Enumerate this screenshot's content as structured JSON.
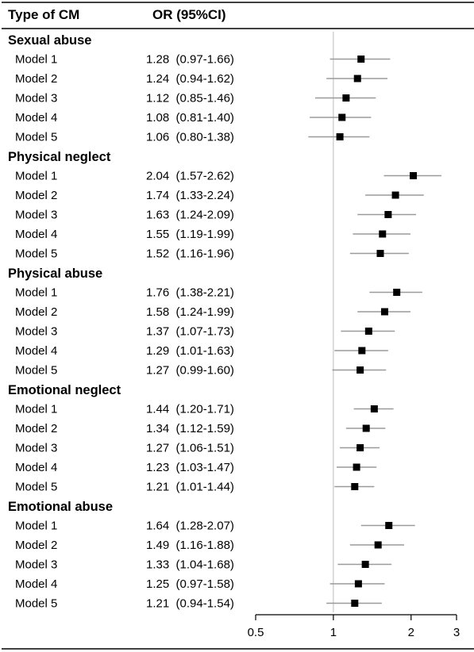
{
  "chart_data": {
    "type": "forest",
    "x_scale": "log",
    "x_ticks": [
      0.5,
      1,
      2,
      3
    ],
    "x_tick_labels": [
      "0.5",
      "1",
      "2",
      "3"
    ],
    "reference_line": 1,
    "header": {
      "col1": "Type of CM",
      "col2": "OR (95%CI)"
    },
    "groups": [
      {
        "name": "Sexual abuse",
        "rows": [
          {
            "label": "Model 1",
            "or": 1.28,
            "lo": 0.97,
            "hi": 1.66,
            "ci_text": "1.28  (0.97-1.66)"
          },
          {
            "label": "Model 2",
            "or": 1.24,
            "lo": 0.94,
            "hi": 1.62,
            "ci_text": "1.24  (0.94-1.62)"
          },
          {
            "label": "Model 3",
            "or": 1.12,
            "lo": 0.85,
            "hi": 1.46,
            "ci_text": "1.12  (0.85-1.46)"
          },
          {
            "label": "Model 4",
            "or": 1.08,
            "lo": 0.81,
            "hi": 1.4,
            "ci_text": "1.08  (0.81-1.40)"
          },
          {
            "label": "Model 5",
            "or": 1.06,
            "lo": 0.8,
            "hi": 1.38,
            "ci_text": "1.06  (0.80-1.38)"
          }
        ]
      },
      {
        "name": "Physical neglect",
        "rows": [
          {
            "label": "Model 1",
            "or": 2.04,
            "lo": 1.57,
            "hi": 2.62,
            "ci_text": "2.04  (1.57-2.62)"
          },
          {
            "label": "Model 2",
            "or": 1.74,
            "lo": 1.33,
            "hi": 2.24,
            "ci_text": "1.74  (1.33-2.24)"
          },
          {
            "label": "Model 3",
            "or": 1.63,
            "lo": 1.24,
            "hi": 2.09,
            "ci_text": "1.63  (1.24-2.09)"
          },
          {
            "label": "Model 4",
            "or": 1.55,
            "lo": 1.19,
            "hi": 1.99,
            "ci_text": "1.55  (1.19-1.99)"
          },
          {
            "label": "Model 5",
            "or": 1.52,
            "lo": 1.16,
            "hi": 1.96,
            "ci_text": "1.52  (1.16-1.96)"
          }
        ]
      },
      {
        "name": "Physical abuse",
        "rows": [
          {
            "label": "Model 1",
            "or": 1.76,
            "lo": 1.38,
            "hi": 2.21,
            "ci_text": "1.76  (1.38-2.21)"
          },
          {
            "label": "Model 2",
            "or": 1.58,
            "lo": 1.24,
            "hi": 1.99,
            "ci_text": "1.58  (1.24-1.99)"
          },
          {
            "label": "Model 3",
            "or": 1.37,
            "lo": 1.07,
            "hi": 1.73,
            "ci_text": "1.37  (1.07-1.73)"
          },
          {
            "label": "Model 4",
            "or": 1.29,
            "lo": 1.01,
            "hi": 1.63,
            "ci_text": "1.29  (1.01-1.63)"
          },
          {
            "label": "Model 5",
            "or": 1.27,
            "lo": 0.99,
            "hi": 1.6,
            "ci_text": "1.27  (0.99-1.60)"
          }
        ]
      },
      {
        "name": "Emotional neglect",
        "rows": [
          {
            "label": "Model 1",
            "or": 1.44,
            "lo": 1.2,
            "hi": 1.71,
            "ci_text": "1.44  (1.20-1.71)"
          },
          {
            "label": "Model 2",
            "or": 1.34,
            "lo": 1.12,
            "hi": 1.59,
            "ci_text": "1.34  (1.12-1.59)"
          },
          {
            "label": "Model 3",
            "or": 1.27,
            "lo": 1.06,
            "hi": 1.51,
            "ci_text": "1.27  (1.06-1.51)"
          },
          {
            "label": "Model 4",
            "or": 1.23,
            "lo": 1.03,
            "hi": 1.47,
            "ci_text": "1.23  (1.03-1.47)"
          },
          {
            "label": "Model 5",
            "or": 1.21,
            "lo": 1.01,
            "hi": 1.44,
            "ci_text": "1.21  (1.01-1.44)"
          }
        ]
      },
      {
        "name": "Emotional abuse",
        "rows": [
          {
            "label": "Model 1",
            "or": 1.64,
            "lo": 1.28,
            "hi": 2.07,
            "ci_text": "1.64  (1.28-2.07)"
          },
          {
            "label": "Model 2",
            "or": 1.49,
            "lo": 1.16,
            "hi": 1.88,
            "ci_text": "1.49  (1.16-1.88)"
          },
          {
            "label": "Model 3",
            "or": 1.33,
            "lo": 1.04,
            "hi": 1.68,
            "ci_text": "1.33  (1.04-1.68)"
          },
          {
            "label": "Model 4",
            "or": 1.25,
            "lo": 0.97,
            "hi": 1.58,
            "ci_text": "1.25  (0.97-1.58)"
          },
          {
            "label": "Model 5",
            "or": 1.21,
            "lo": 0.94,
            "hi": 1.54,
            "ci_text": "1.21  (0.94-1.54)"
          }
        ]
      }
    ],
    "colors": {
      "marker": "#000000",
      "ci_line": "#9a9a9a",
      "reference_line": "#bbbbbb",
      "rule": "#000000"
    }
  }
}
